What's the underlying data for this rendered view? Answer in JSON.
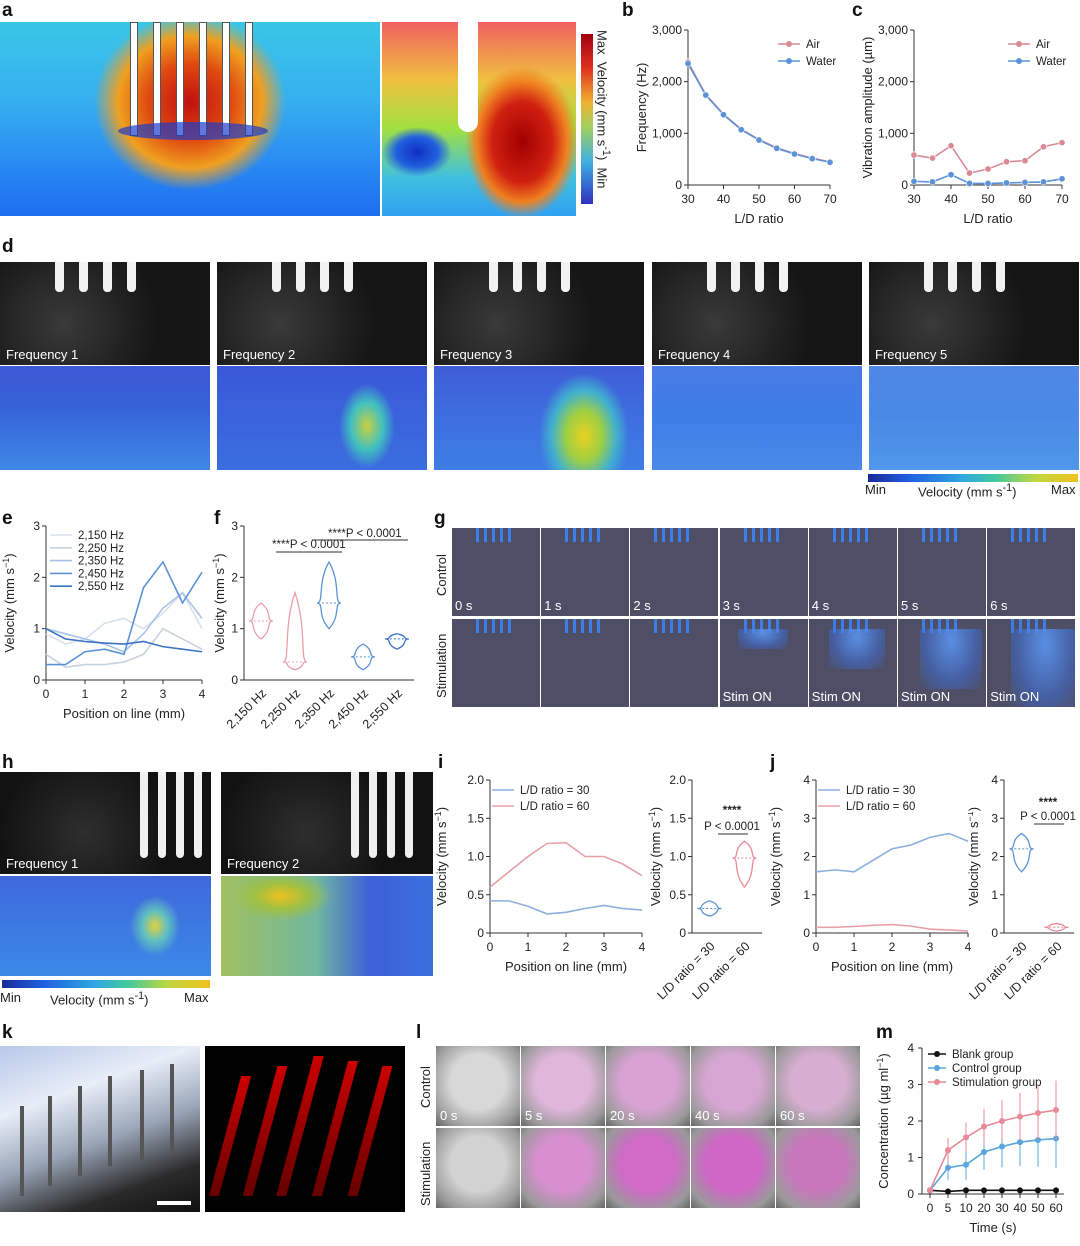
{
  "panels": {
    "a": "a",
    "b": "b",
    "c": "c",
    "d": "d",
    "e": "e",
    "f": "f",
    "g": "g",
    "h": "h",
    "i": "i",
    "j": "j",
    "k": "k",
    "l": "l",
    "m": "m"
  },
  "a_colorbar": {
    "max": "Max",
    "title": "Velocity (mm s",
    "sup": "-1",
    "close": ")",
    "min": "Min"
  },
  "d": {
    "frames": [
      "Frequency 1",
      "Frequency 2",
      "Frequency 3",
      "Frequency 4",
      "Frequency 5"
    ],
    "colorbar": {
      "min": "Min",
      "title": "Velocity (mm s",
      "sup": "-1",
      "close": ")",
      "max": "Max"
    }
  },
  "g": {
    "rows": [
      "Control",
      "Stimulation"
    ],
    "times": [
      "0 s",
      "1 s",
      "2 s",
      "3 s",
      "4 s",
      "5 s",
      "6 s"
    ],
    "stim": "Stim ON"
  },
  "h": {
    "frames": [
      "Frequency 1",
      "Frequency 2"
    ],
    "colorbar": {
      "min": "Min",
      "title": "Velocity (mm s",
      "sup": "-1",
      "close": ")",
      "max": "Max"
    }
  },
  "l": {
    "rows": [
      "Control",
      "Stimulation"
    ],
    "times": [
      "0 s",
      "5 s",
      "20 s",
      "40 s",
      "60 s"
    ]
  },
  "colors": {
    "air": "#d98a94",
    "water": "#5b93d6",
    "blank": "#111111",
    "control": "#5aa5dc",
    "stim": "#e88a97"
  },
  "chart_data": [
    {
      "id": "b",
      "type": "line",
      "xlabel": "L/D ratio",
      "ylabel": "Frequency (Hz)",
      "xlim": [
        30,
        70
      ],
      "ylim": [
        0,
        3000
      ],
      "xticks": [
        30,
        40,
        50,
        60,
        70
      ],
      "yticks": [
        0,
        1000,
        2000,
        3000
      ],
      "ytick_labels": [
        "0",
        "1,000",
        "2,000",
        "3,000"
      ],
      "x": [
        30,
        35,
        40,
        45,
        50,
        55,
        60,
        65,
        70
      ],
      "series": [
        {
          "name": "Air",
          "values": [
            2380,
            1750,
            1370,
            1080,
            880,
            720,
            610,
            520,
            450
          ]
        },
        {
          "name": "Water",
          "values": [
            2350,
            1740,
            1360,
            1070,
            870,
            710,
            600,
            510,
            440
          ]
        }
      ]
    },
    {
      "id": "c",
      "type": "line",
      "xlabel": "L/D ratio",
      "ylabel": "Vibration amplitude (µm)",
      "xlim": [
        30,
        70
      ],
      "ylim": [
        0,
        3000
      ],
      "xticks": [
        30,
        40,
        50,
        60,
        70
      ],
      "yticks": [
        0,
        1000,
        2000,
        3000
      ],
      "ytick_labels": [
        "0",
        "1,000",
        "2,000",
        "3,000"
      ],
      "x": [
        30,
        35,
        40,
        45,
        50,
        55,
        60,
        65,
        70
      ],
      "series": [
        {
          "name": "Air",
          "values": [
            580,
            520,
            760,
            230,
            310,
            450,
            470,
            740,
            820
          ]
        },
        {
          "name": "Water",
          "values": [
            70,
            60,
            200,
            30,
            30,
            40,
            50,
            60,
            120
          ]
        }
      ]
    },
    {
      "id": "e",
      "type": "line",
      "xlabel": "Position on line (mm)",
      "ylabel": "Velocity (mm s-1)",
      "xlim": [
        0,
        4
      ],
      "ylim": [
        0,
        3
      ],
      "xticks": [
        0,
        1,
        2,
        3,
        4
      ],
      "yticks": [
        0,
        1,
        2,
        3
      ],
      "x": [
        0,
        0.5,
        1,
        1.5,
        2,
        2.5,
        3,
        3.5,
        4
      ],
      "series": [
        {
          "name": "2,150 Hz",
          "values": [
            0.9,
            0.7,
            0.8,
            1.1,
            1.2,
            1.0,
            1.3,
            1.7,
            1.0
          ]
        },
        {
          "name": "2,250 Hz",
          "values": [
            0.5,
            0.25,
            0.3,
            0.3,
            0.35,
            0.5,
            1.0,
            0.8,
            0.6
          ]
        },
        {
          "name": "2,350 Hz",
          "values": [
            1.0,
            0.9,
            0.8,
            0.7,
            0.55,
            0.9,
            1.4,
            1.7,
            1.2
          ]
        },
        {
          "name": "2,450 Hz",
          "values": [
            0.3,
            0.3,
            0.55,
            0.6,
            0.5,
            1.8,
            2.3,
            1.5,
            2.1
          ]
        },
        {
          "name": "2,550 Hz",
          "values": [
            1.0,
            0.8,
            0.75,
            0.72,
            0.7,
            0.75,
            0.65,
            0.6,
            0.55
          ]
        }
      ]
    },
    {
      "id": "f",
      "type": "violin",
      "ylabel": "Velocity (mm s-1)",
      "ylim": [
        0,
        3
      ],
      "yticks": [
        0,
        1,
        2,
        3
      ],
      "categories": [
        "2,150 Hz",
        "2,250 Hz",
        "2,350 Hz",
        "2,450 Hz",
        "2,550 Hz"
      ],
      "medians": [
        1.15,
        0.35,
        1.5,
        0.45,
        0.8
      ],
      "ranges": [
        [
          0.8,
          1.5
        ],
        [
          0.2,
          1.7
        ],
        [
          1.0,
          2.3
        ],
        [
          0.2,
          0.7
        ],
        [
          0.6,
          0.9
        ]
      ],
      "annotations": [
        "****P < 0.0001",
        "****P < 0.0001"
      ]
    },
    {
      "id": "i",
      "type": "line",
      "xlabel": "Position on line (mm)",
      "ylabel": "Velocity (mm s-1)",
      "xlim": [
        0,
        4
      ],
      "ylim": [
        0,
        2.0
      ],
      "xticks": [
        0,
        1,
        2,
        3,
        4
      ],
      "yticks": [
        0,
        0.5,
        1.0,
        1.5,
        2.0
      ],
      "ytick_labels": [
        "0",
        "0.5",
        "1.0",
        "1.5",
        "2.0"
      ],
      "x": [
        0,
        0.5,
        1,
        1.5,
        2,
        2.5,
        3,
        3.5,
        4
      ],
      "series": [
        {
          "name": "L/D ratio = 30",
          "values": [
            0.42,
            0.42,
            0.35,
            0.25,
            0.27,
            0.32,
            0.36,
            0.32,
            0.3
          ]
        },
        {
          "name": "L/D ratio = 60",
          "values": [
            0.6,
            0.8,
            1.0,
            1.17,
            1.18,
            1.0,
            1.0,
            0.9,
            0.75
          ]
        }
      ]
    },
    {
      "id": "i2",
      "type": "violin",
      "ylabel": "Velocity (mm s-1)",
      "ylim": [
        0,
        2.0
      ],
      "yticks": [
        0,
        0.5,
        1.0,
        1.5,
        2.0
      ],
      "ytick_labels": [
        "0",
        "0.5",
        "1.0",
        "1.5",
        "2.0"
      ],
      "categories": [
        "L/D ratio = 30",
        "L/D ratio = 60"
      ],
      "medians": [
        0.32,
        0.98
      ],
      "ranges": [
        [
          0.22,
          0.42
        ],
        [
          0.6,
          1.2
        ]
      ],
      "annotations": [
        "****",
        "P < 0.0001"
      ]
    },
    {
      "id": "j",
      "type": "line",
      "xlabel": "Position on line (mm)",
      "ylabel": "Velocity (mm s-1)",
      "xlim": [
        0,
        4
      ],
      "ylim": [
        0,
        4
      ],
      "xticks": [
        0,
        1,
        2,
        3,
        4
      ],
      "yticks": [
        0,
        1,
        2,
        3,
        4
      ],
      "x": [
        0,
        0.5,
        1,
        1.5,
        2,
        2.5,
        3,
        3.5,
        4
      ],
      "series": [
        {
          "name": "L/D ratio = 30",
          "values": [
            1.6,
            1.65,
            1.6,
            1.9,
            2.2,
            2.3,
            2.5,
            2.6,
            2.4
          ]
        },
        {
          "name": "L/D ratio = 60",
          "values": [
            0.15,
            0.15,
            0.17,
            0.2,
            0.22,
            0.18,
            0.1,
            0.08,
            0.05
          ]
        }
      ]
    },
    {
      "id": "j2",
      "type": "violin",
      "ylabel": "Velocity (mm s-1)",
      "ylim": [
        0,
        4
      ],
      "yticks": [
        0,
        1,
        2,
        3,
        4
      ],
      "categories": [
        "L/D ratio = 30",
        "L/D ratio = 60"
      ],
      "medians": [
        2.2,
        0.15
      ],
      "ranges": [
        [
          1.6,
          2.6
        ],
        [
          0.05,
          0.25
        ]
      ],
      "annotations": [
        "****",
        "P < 0.0001"
      ]
    },
    {
      "id": "m",
      "type": "line",
      "xlabel": "Time (s)",
      "ylabel": "Concentration (µg ml-1)",
      "xlim": [
        0,
        60
      ],
      "ylim": [
        0,
        4
      ],
      "xticks": [
        0,
        5,
        10,
        20,
        30,
        40,
        50,
        60
      ],
      "yticks": [
        0,
        1,
        2,
        3,
        4
      ],
      "x": [
        0,
        5,
        10,
        20,
        30,
        40,
        50,
        60
      ],
      "series": [
        {
          "name": "Blank group",
          "values": [
            0.1,
            0.07,
            0.1,
            0.1,
            0.1,
            0.1,
            0.1,
            0.1
          ]
        },
        {
          "name": "Control group",
          "values": [
            0.1,
            0.72,
            0.8,
            1.15,
            1.3,
            1.42,
            1.48,
            1.52
          ]
        },
        {
          "name": "Stimulation group",
          "values": [
            0.1,
            1.2,
            1.55,
            1.85,
            2.0,
            2.12,
            2.22,
            2.3
          ]
        }
      ]
    }
  ]
}
